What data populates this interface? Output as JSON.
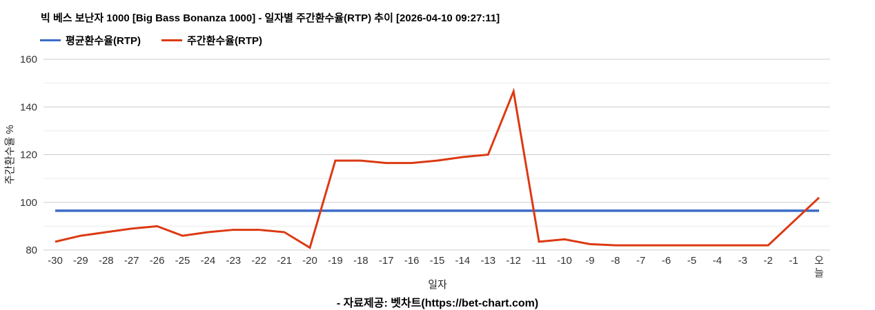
{
  "header": {
    "title": "빅 베스 보난자 1000 [Big Bass Bonanza 1000] - 일자별 주간환수율(RTP) 추이 [2026-04-10 09:27:11]"
  },
  "legend": {
    "items": [
      {
        "label": "평균환수율(RTP)",
        "color": "#3b6cc8"
      },
      {
        "label": "주간환수율(RTP)",
        "color": "#dc3912"
      }
    ]
  },
  "chart_data": {
    "type": "line",
    "title": "빅 베스 보난자 1000 [Big Bass Bonanza 1000] - 일자별 주간환수율(RTP) 추이 [2026-04-10 09:27:11]",
    "xlabel": "일자",
    "ylabel": "주간환수율 %",
    "ylim": [
      80,
      160
    ],
    "yticks": [
      80,
      100,
      120,
      140,
      160
    ],
    "minor_yticks": [
      90,
      110,
      130,
      150
    ],
    "grid": true,
    "legend_position": "top-left",
    "categories": [
      "-30",
      "-29",
      "-28",
      "-27",
      "-26",
      "-25",
      "-24",
      "-23",
      "-22",
      "-21",
      "-20",
      "-19",
      "-18",
      "-17",
      "-16",
      "-15",
      "-14",
      "-13",
      "-12",
      "-11",
      "-10",
      "-9",
      "-8",
      "-7",
      "-6",
      "-5",
      "-4",
      "-3",
      "-2",
      "-1",
      "오늘"
    ],
    "series": [
      {
        "name": "평균환수율(RTP)",
        "color": "#3b6cc8",
        "values": [
          96.5,
          96.5,
          96.5,
          96.5,
          96.5,
          96.5,
          96.5,
          96.5,
          96.5,
          96.5,
          96.5,
          96.5,
          96.5,
          96.5,
          96.5,
          96.5,
          96.5,
          96.5,
          96.5,
          96.5,
          96.5,
          96.5,
          96.5,
          96.5,
          96.5,
          96.5,
          96.5,
          96.5,
          96.5,
          96.5,
          96.5
        ]
      },
      {
        "name": "주간환수율(RTP)",
        "color": "#dc3912",
        "values": [
          83.5,
          86,
          87.5,
          89,
          90,
          86,
          87.5,
          88.5,
          88.5,
          87.5,
          81,
          117.5,
          117.5,
          116.5,
          116.5,
          117.5,
          119,
          120,
          146.5,
          83.5,
          84.5,
          82.5,
          82,
          82,
          82,
          82,
          82,
          82,
          82,
          92,
          102
        ]
      }
    ]
  },
  "footer": {
    "credit": "- 자료제공: 벳차트(https://bet-chart.com)"
  },
  "colors": {
    "grid_major": "#cccccc",
    "grid_minor": "#ebebeb",
    "tick_text": "#333333",
    "background": "#ffffff"
  }
}
